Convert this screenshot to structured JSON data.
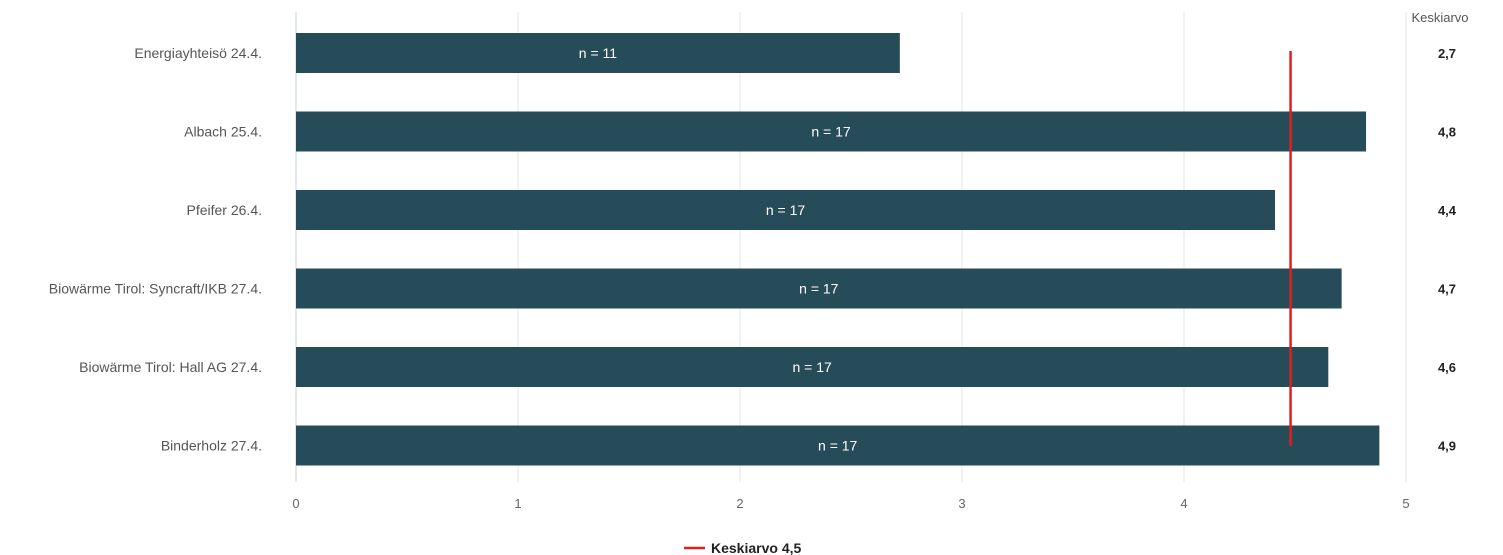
{
  "chart_data": {
    "type": "bar",
    "orientation": "horizontal",
    "categories": [
      "Energiayhteisö 24.4.",
      "Albach 25.4.",
      "Pfeifer 26.4.",
      "Biowärme Tirol: Syncraft/IKB 27.4.",
      "Biowärme Tirol: Hall AG 27.4.",
      "Binderholz 27.4."
    ],
    "values": [
      2.72,
      4.82,
      4.41,
      4.71,
      4.65,
      4.88
    ],
    "n_labels": [
      "n = 11",
      "n = 17",
      "n = 17",
      "n = 17",
      "n = 17",
      "n = 17"
    ],
    "mean_column_header": "Keskiarvo",
    "mean_labels": [
      "2,7",
      "4,8",
      "4,4",
      "4,7",
      "4,6",
      "4,9"
    ],
    "xlim": [
      0,
      5
    ],
    "xticks": [
      0,
      1,
      2,
      3,
      4,
      5
    ],
    "reference_line": {
      "value": 4.48,
      "label": "Keskiarvo 4,5",
      "color": "#e02020"
    },
    "bar_color": "#264c5a",
    "grid": true,
    "legend_position": "bottom"
  }
}
